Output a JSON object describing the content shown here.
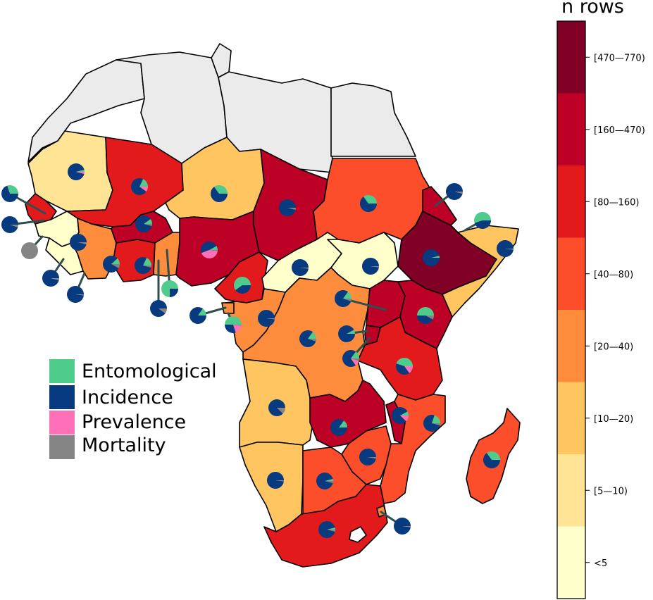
{
  "colorbar": {
    "title": "n rows",
    "bins": [
      {
        "label": "[470—770)",
        "color": "#800026"
      },
      {
        "label": "[160—470)",
        "color": "#bd0026"
      },
      {
        "label": "[80—160)",
        "color": "#e31a1c"
      },
      {
        "label": "[40—80)",
        "color": "#fc4e2a"
      },
      {
        "label": "[20—40)",
        "color": "#fd8d3c"
      },
      {
        "label": "[10—20)",
        "color": "#fec561"
      },
      {
        "label": "[5—10)",
        "color": "#ffe496"
      },
      {
        "label": "<5",
        "color": "#ffffcc"
      }
    ]
  },
  "legend": {
    "items": [
      {
        "label": "Entomological",
        "color": "#4fcc8c"
      },
      {
        "label": "Incidence",
        "color": "#083a80"
      },
      {
        "label": "Prevalence",
        "color": "#ff70b8"
      },
      {
        "label": "Mortality",
        "color": "#858585"
      }
    ]
  },
  "colors": {
    "no_data": "#ebebeb",
    "border": "#000000",
    "leader_line": "#2f4f4f"
  }
}
